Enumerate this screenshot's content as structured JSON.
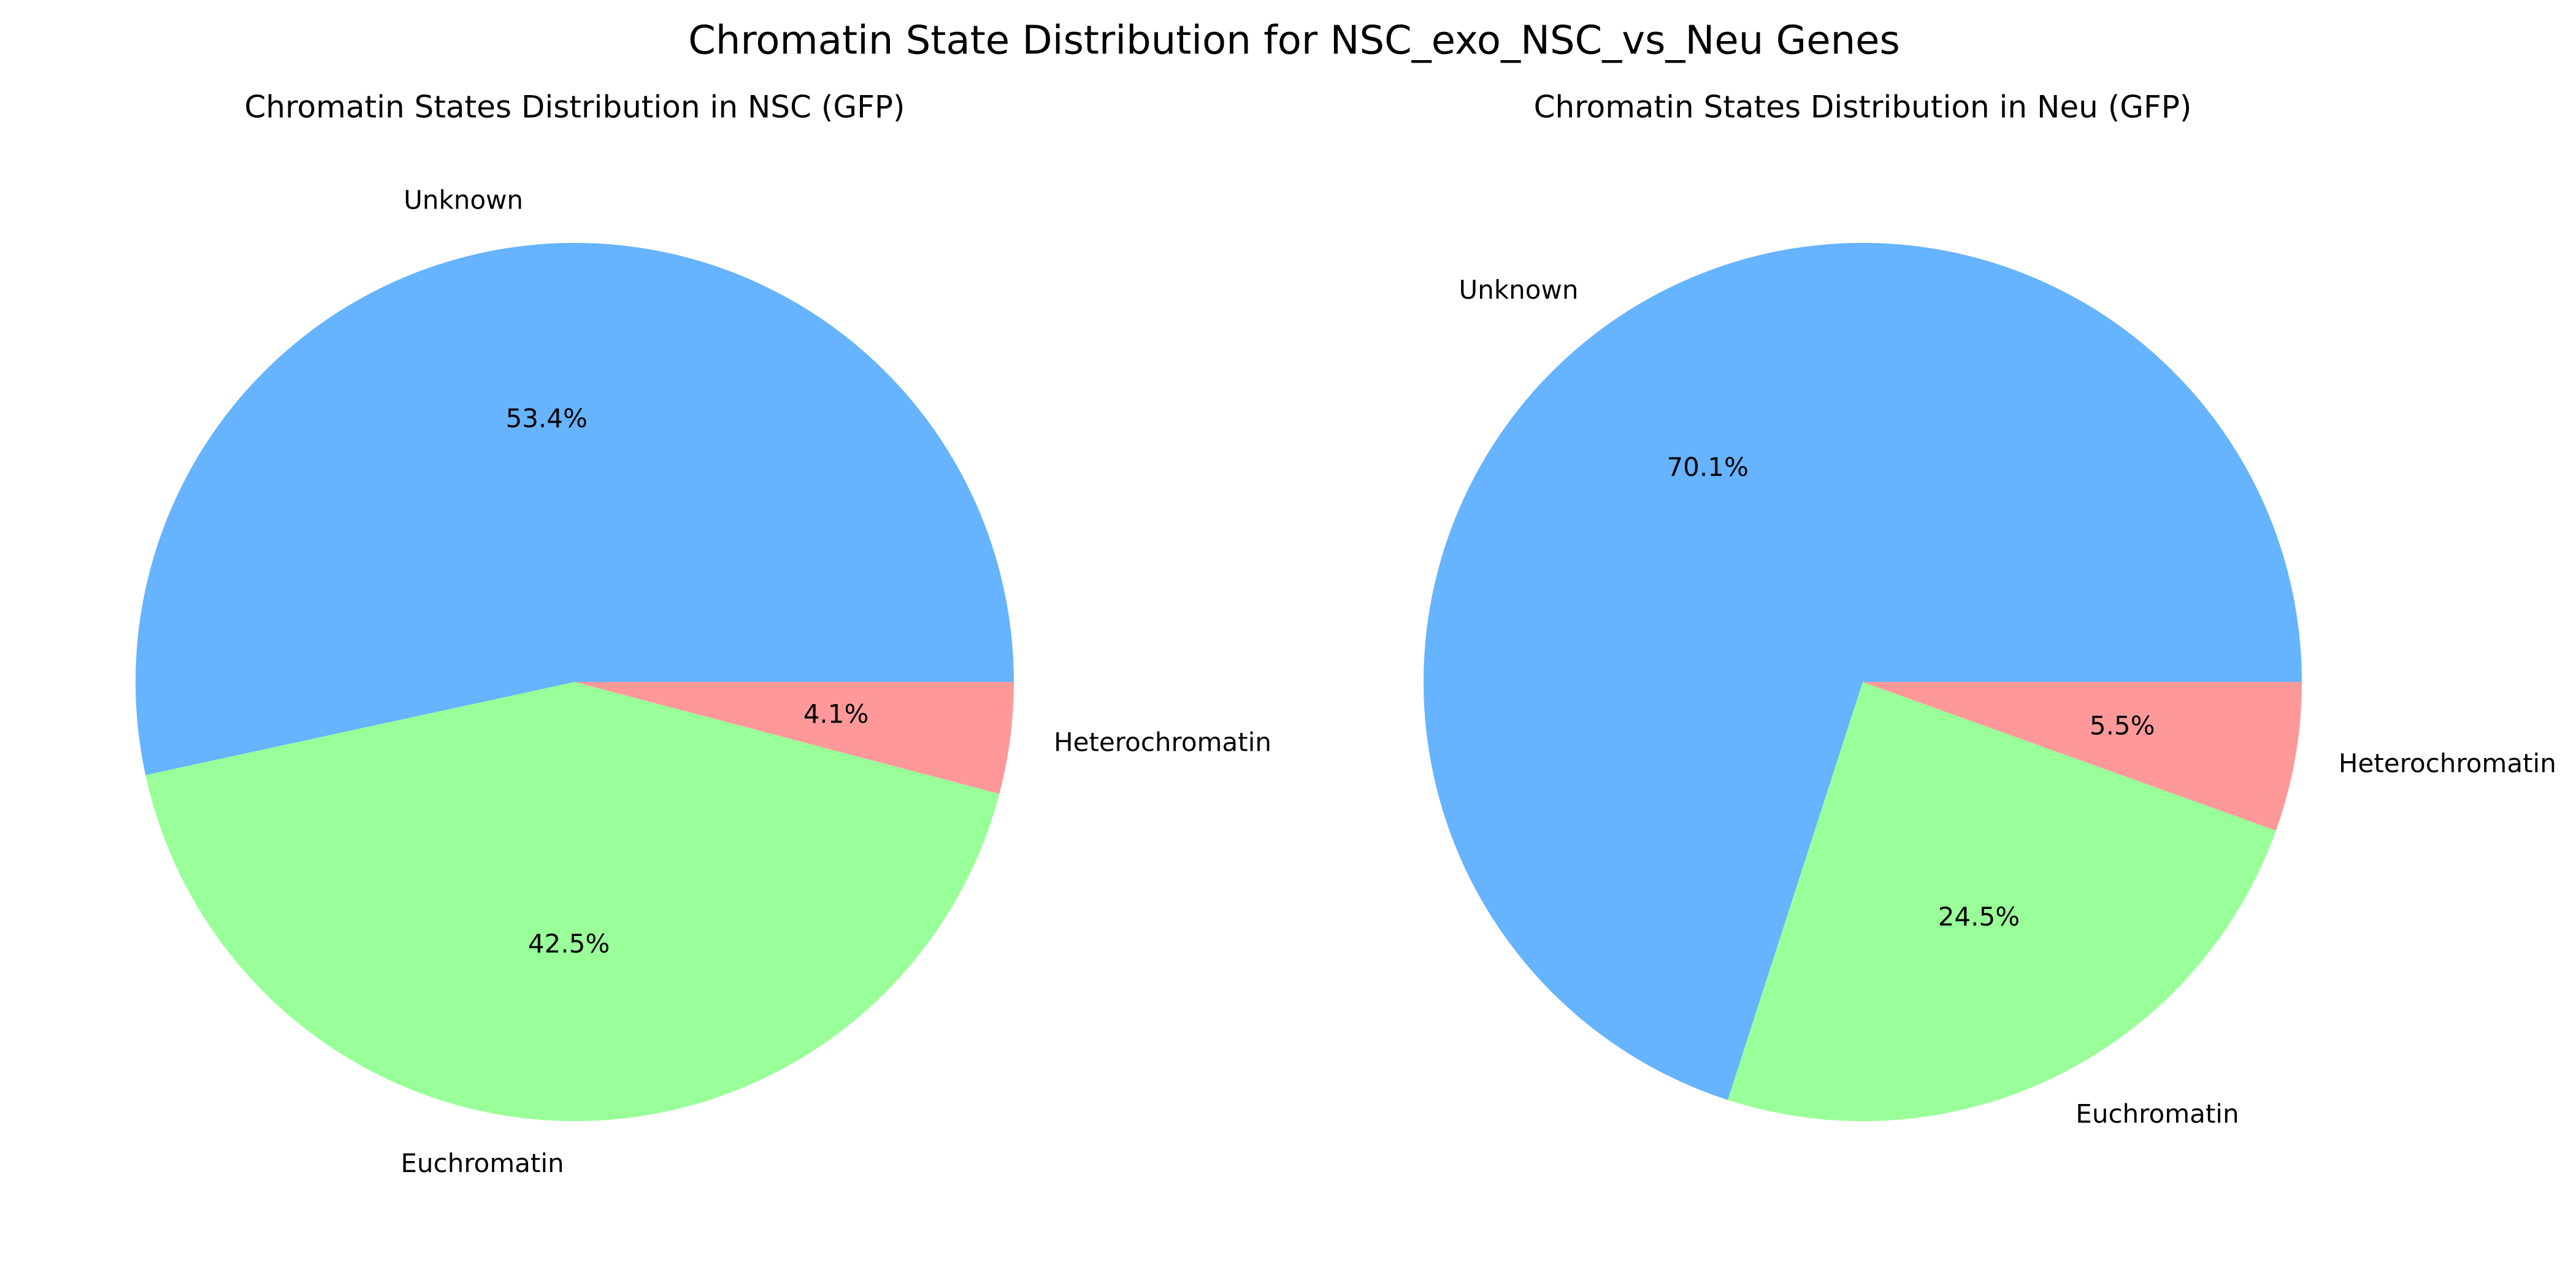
{
  "figure": {
    "title": "Chromatin State Distribution for NSC_exo_NSC_vs_Neu Genes"
  },
  "chart_data": [
    {
      "type": "pie",
      "title": "Chromatin States Distribution in NSC (GFP)",
      "labels": [
        "Unknown",
        "Euchromatin",
        "Heterochromatin"
      ],
      "values": [
        53.4,
        42.5,
        4.1
      ],
      "percent_labels": [
        "53.4%",
        "42.5%",
        "4.1%"
      ],
      "colors": [
        "#66b3ff",
        "#99ff99",
        "#ff9999"
      ],
      "start_angle_deg": 0,
      "direction": "counterclockwise",
      "legend": "none"
    },
    {
      "type": "pie",
      "title": "Chromatin States Distribution in Neu (GFP)",
      "labels": [
        "Unknown",
        "Euchromatin",
        "Heterochromatin"
      ],
      "values": [
        70.1,
        24.5,
        5.5
      ],
      "percent_labels": [
        "70.1%",
        "24.5%",
        "5.5%"
      ],
      "colors": [
        "#66b3ff",
        "#99ff99",
        "#ff9999"
      ],
      "start_angle_deg": 0,
      "direction": "counterclockwise",
      "legend": "none"
    }
  ]
}
